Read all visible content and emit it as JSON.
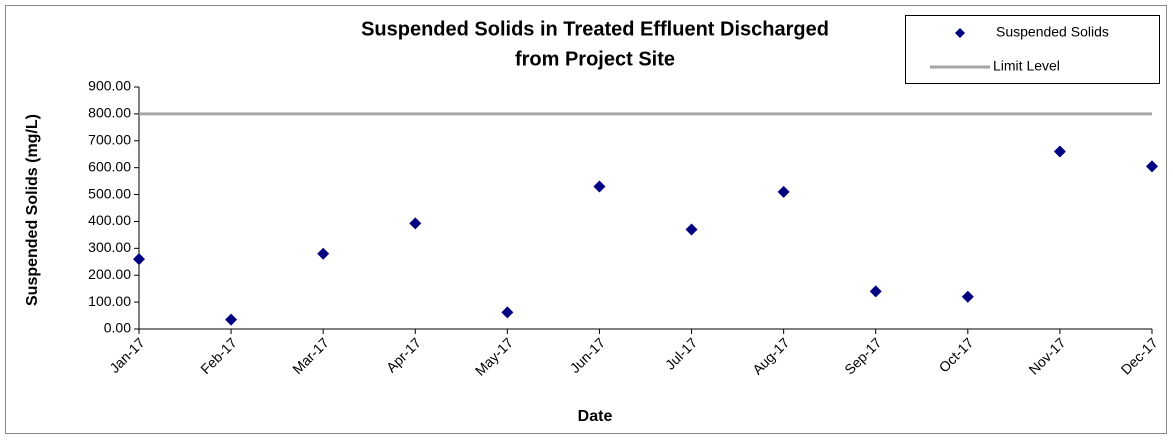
{
  "chart_data": {
    "type": "scatter",
    "title": [
      "Suspended Solids in Treated Effluent Discharged",
      "from Project Site"
    ],
    "x_label": "Date",
    "y_label": "Suspended Solids (mg/L)",
    "categories": [
      "Jan-17",
      "Feb-17",
      "Mar-17",
      "Apr-17",
      "May-17",
      "Jun-17",
      "Jul-17",
      "Aug-17",
      "Sep-17",
      "Oct-17",
      "Nov-17",
      "Dec-17"
    ],
    "series": [
      {
        "name": "Suspended Solids",
        "color": "#000080",
        "marker": "diamond",
        "values": [
          260,
          35,
          280,
          393,
          62,
          530,
          370,
          510,
          140,
          120,
          660,
          605
        ]
      },
      {
        "name": "Limit Level",
        "color": "#a6a6a6",
        "marker": "line",
        "values": [
          800,
          800,
          800,
          800,
          800,
          800,
          800,
          800,
          800,
          800,
          800,
          800
        ]
      }
    ],
    "ylim": [
      0,
      900
    ],
    "yticks": [
      {
        "value": 0,
        "label": "0.00"
      },
      {
        "value": 100,
        "label": "100.00"
      },
      {
        "value": 200,
        "label": "200.00"
      },
      {
        "value": 300,
        "label": "300.00"
      },
      {
        "value": 400,
        "label": "400.00"
      },
      {
        "value": 500,
        "label": "500.00"
      },
      {
        "value": 600,
        "label": "600.00"
      },
      {
        "value": 700,
        "label": "700.00"
      },
      {
        "value": 800,
        "label": "800.00"
      },
      {
        "value": 900,
        "label": "900.00"
      }
    ],
    "grid": false,
    "legend": "top-right"
  }
}
